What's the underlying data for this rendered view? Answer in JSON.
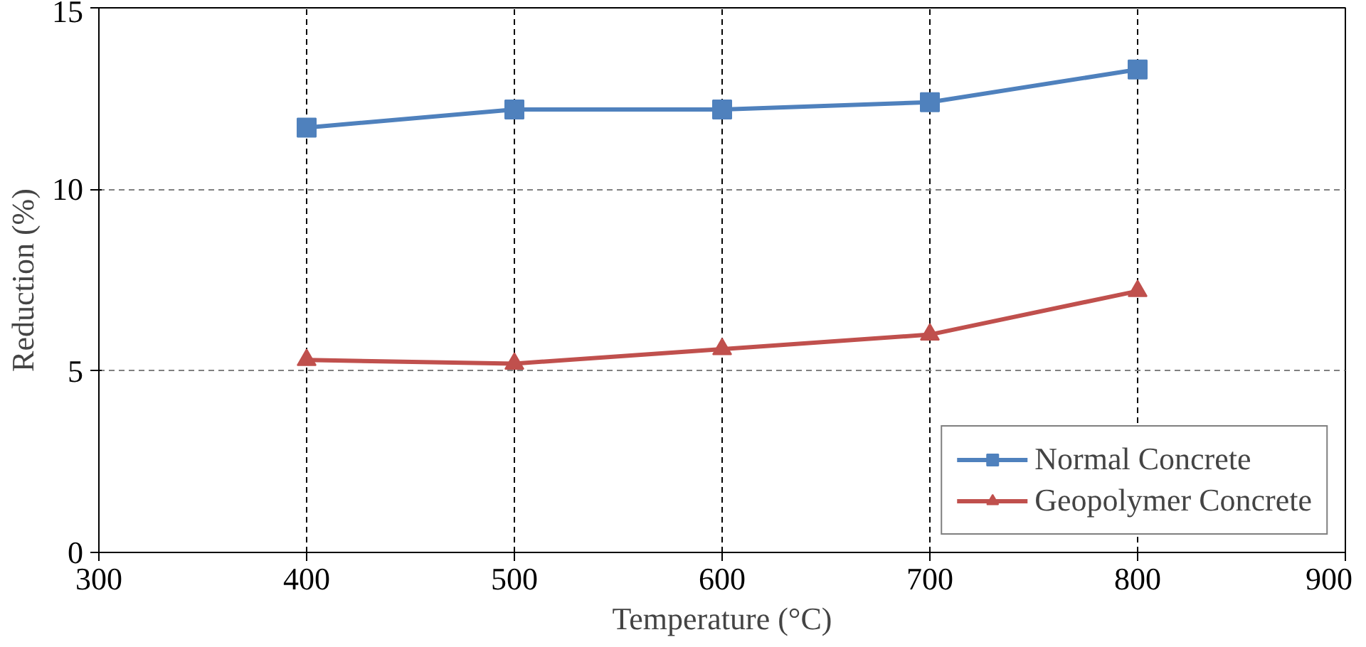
{
  "chart_data": {
    "type": "line",
    "xlabel": "Temperature (°C)",
    "ylabel": "Reduction (%)",
    "x": [
      400,
      500,
      600,
      700,
      800
    ],
    "series": [
      {
        "name": "Normal Concrete",
        "color": "#4f81bd",
        "marker": "square",
        "values": [
          11.7,
          12.2,
          12.2,
          12.4,
          13.3
        ]
      },
      {
        "name": "Geopolymer Concrete",
        "color": "#c0504d",
        "marker": "triangle",
        "values": [
          5.3,
          5.2,
          5.6,
          6.0,
          7.2
        ]
      }
    ],
    "xlim": [
      300,
      900
    ],
    "ylim": [
      0,
      15
    ],
    "xticks": [
      300,
      400,
      500,
      600,
      700,
      800,
      900
    ],
    "yticks": [
      0,
      5,
      10,
      15
    ],
    "grid": true,
    "legend": "bottom right",
    "line_style": "solid"
  }
}
